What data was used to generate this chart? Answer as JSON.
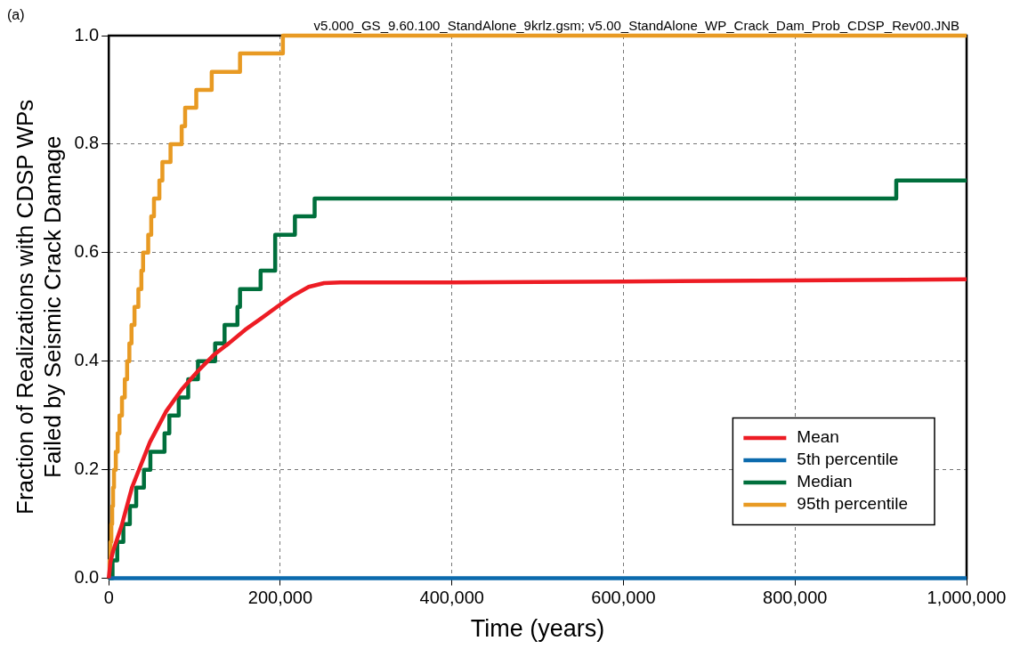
{
  "chart_data": {
    "type": "line",
    "xlabel": "Time (years)",
    "ylabel": "Fraction of Realizations with CDSP WPs\nFailed by Seismic Crack Damage",
    "annotations": [
      "(a)",
      "v5.000_GS_9.60.100_StandAlone_9krlz.gsm; v5.00_StandAlone_WP_Crack_Dam_Prob_CDSP_Rev00.JNB"
    ],
    "xlim": [
      0,
      1000000
    ],
    "ylim": [
      0,
      1
    ],
    "xticks": [
      0,
      {
        "value": 200000,
        "label": "200,000"
      },
      {
        "value": 400000,
        "label": "400,000"
      },
      {
        "value": 600000,
        "label": "600,000"
      },
      {
        "value": 800000,
        "label": "800,000"
      },
      {
        "value": 1000000,
        "label": "1,000,000"
      }
    ],
    "yticks": [
      {
        "value": 0,
        "label": "0.0"
      },
      {
        "value": 0.2,
        "label": "0.2"
      },
      {
        "value": 0.4,
        "label": "0.4"
      },
      {
        "value": 0.6,
        "label": "0.6"
      },
      {
        "value": 0.8,
        "label": "0.8"
      },
      {
        "value": 1,
        "label": "1.0"
      }
    ],
    "grid": true,
    "legend": "bottom right",
    "marker": "none",
    "line_style": "solid",
    "series": [
      {
        "name": "Mean",
        "type": "line",
        "color": "#ed1c24",
        "x": [
          0,
          2000,
          5000,
          15000,
          27000,
          48000,
          67000,
          85000,
          104000,
          122000,
          140000,
          159000,
          177000,
          196000,
          214000,
          233000,
          251000,
          270000,
          400000,
          600000,
          800000,
          1000000
        ],
        "values": [
          0,
          0.03,
          0.05,
          0.097,
          0.167,
          0.251,
          0.308,
          0.348,
          0.382,
          0.411,
          0.433,
          0.458,
          0.478,
          0.5,
          0.52,
          0.537,
          0.544,
          0.545,
          0.545,
          0.547,
          0.549,
          0.551
        ]
      },
      {
        "name": "5th percentile",
        "type": "line",
        "color": "#0b6aad",
        "x": [
          0,
          1000000
        ],
        "values": [
          0,
          0
        ]
      },
      {
        "name": "Median",
        "type": "step",
        "color": "#006f3c",
        "x": [
          0,
          4400,
          9900,
          17000,
          24600,
          32000,
          41000,
          48500,
          65000,
          70600,
          81600,
          92600,
          104000,
          124000,
          135000,
          150000,
          153000,
          177000,
          194000,
          217000,
          240000,
          918000,
          1000000
        ],
        "values": [
          0,
          0.033,
          0.067,
          0.1,
          0.133,
          0.167,
          0.2,
          0.233,
          0.267,
          0.3,
          0.333,
          0.367,
          0.4,
          0.433,
          0.467,
          0.5,
          0.533,
          0.567,
          0.633,
          0.667,
          0.7,
          0.733,
          0.733
        ]
      },
      {
        "name": "95th percentile",
        "type": "step",
        "color": "#e89a23",
        "x": [
          0,
          1000,
          2000,
          3000,
          4000,
          5000,
          6100,
          8200,
          10400,
          12500,
          15400,
          18700,
          21400,
          24000,
          26500,
          30000,
          34500,
          38000,
          40000,
          46000,
          49500,
          52700,
          59000,
          62500,
          72000,
          85000,
          89000,
          102000,
          120000,
          153000,
          203000,
          1000000
        ],
        "values": [
          0,
          0.033,
          0.067,
          0.1,
          0.133,
          0.167,
          0.2,
          0.233,
          0.267,
          0.3,
          0.333,
          0.367,
          0.4,
          0.433,
          0.467,
          0.5,
          0.533,
          0.567,
          0.6,
          0.633,
          0.667,
          0.7,
          0.733,
          0.767,
          0.8,
          0.833,
          0.867,
          0.9,
          0.933,
          0.967,
          1,
          1
        ]
      }
    ]
  }
}
